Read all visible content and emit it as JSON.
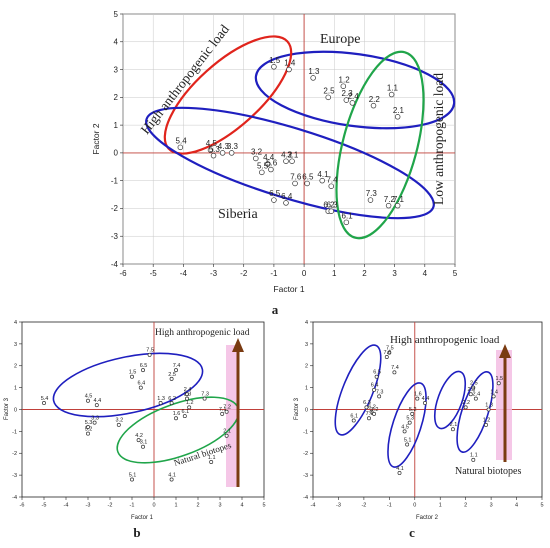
{
  "colors": {
    "blue": "#1f1fbf",
    "red": "#e0241c",
    "green": "#20a54a",
    "axis": "#c0403a",
    "grid": "#c8c8c8",
    "point": "#333333",
    "arrow": "#7a3b12",
    "band": "#f3bde3"
  },
  "chart_data": [
    {
      "id": "a",
      "panel_label": "a",
      "type": "scatter",
      "xlabel": "Factor 1",
      "ylabel": "Factor 2",
      "xlim": [
        -6,
        5
      ],
      "ylim": [
        -4,
        5
      ],
      "xticks": [
        -6,
        -5,
        -4,
        -3,
        -2,
        -1,
        0,
        1,
        2,
        3,
        4,
        5
      ],
      "yticks": [
        -4,
        -3,
        -2,
        -1,
        0,
        1,
        2,
        3,
        4,
        5
      ],
      "grid": true,
      "points": [
        {
          "label": "1.5",
          "x": -1.0,
          "y": 3.1
        },
        {
          "label": "1.4",
          "x": -0.5,
          "y": 3.0
        },
        {
          "label": "1.3",
          "x": 0.3,
          "y": 2.7
        },
        {
          "label": "1.2",
          "x": 1.3,
          "y": 2.4
        },
        {
          "label": "2.5",
          "x": 0.8,
          "y": 2.0
        },
        {
          "label": "2.3",
          "x": 1.4,
          "y": 1.9
        },
        {
          "label": "2.4",
          "x": 1.6,
          "y": 1.8
        },
        {
          "label": "1.1",
          "x": 2.9,
          "y": 2.1
        },
        {
          "label": "2.2",
          "x": 2.3,
          "y": 1.7
        },
        {
          "label": "2.1",
          "x": 3.1,
          "y": 1.3
        },
        {
          "label": "5.4",
          "x": -4.1,
          "y": 0.2
        },
        {
          "label": "4.5",
          "x": -3.1,
          "y": 0.1
        },
        {
          "label": "4.3",
          "x": -2.7,
          "y": 0.0
        },
        {
          "label": "3.3",
          "x": -2.4,
          "y": 0.0
        },
        {
          "label": "5.3",
          "x": -3.0,
          "y": -0.1
        },
        {
          "label": "3.2",
          "x": -1.6,
          "y": -0.2
        },
        {
          "label": "4.4",
          "x": -1.2,
          "y": -0.4
        },
        {
          "label": "4.2",
          "x": -0.6,
          "y": -0.3
        },
        {
          "label": "3.1",
          "x": -0.4,
          "y": -0.3
        },
        {
          "label": "5.5",
          "x": -1.4,
          "y": -0.7
        },
        {
          "label": "5.6",
          "x": -1.1,
          "y": -0.6
        },
        {
          "label": "7.6",
          "x": -0.3,
          "y": -1.1
        },
        {
          "label": "6.5",
          "x": 0.1,
          "y": -1.1
        },
        {
          "label": "4.1",
          "x": 0.6,
          "y": -1.0
        },
        {
          "label": "7.4",
          "x": 0.9,
          "y": -1.2
        },
        {
          "label": "6.5",
          "x": -1.0,
          "y": -1.7
        },
        {
          "label": "6.4",
          "x": -0.6,
          "y": -1.8
        },
        {
          "label": "6.2",
          "x": 0.8,
          "y": -2.1
        },
        {
          "label": "6.3",
          "x": 0.9,
          "y": -2.1
        },
        {
          "label": "7.3",
          "x": 2.2,
          "y": -1.7
        },
        {
          "label": "7.2",
          "x": 2.8,
          "y": -1.9
        },
        {
          "label": "7.1",
          "x": 3.1,
          "y": -1.9
        },
        {
          "label": "6.1",
          "x": 1.4,
          "y": -2.5
        }
      ],
      "annotations": [
        "Europe",
        "Siberia",
        "High anthropogenic load",
        "Low anthropogenic load"
      ]
    },
    {
      "id": "b",
      "panel_label": "b",
      "type": "scatter",
      "xlabel": "Factor 1",
      "ylabel": "Factor 3",
      "xlim": [
        -6,
        5
      ],
      "ylim": [
        -4,
        4
      ],
      "xticks": [
        -6,
        -5,
        -4,
        -3,
        -2,
        -1,
        0,
        1,
        2,
        3,
        4,
        5
      ],
      "yticks": [
        -4,
        -3,
        -2,
        -1,
        0,
        1,
        2,
        3,
        4
      ],
      "grid": false,
      "points": [
        {
          "label": "5.4",
          "x": -5.0,
          "y": 0.3
        },
        {
          "label": "4.5",
          "x": -3.0,
          "y": 0.4
        },
        {
          "label": "4.4",
          "x": -2.6,
          "y": 0.2
        },
        {
          "label": "5.3",
          "x": -3.0,
          "y": -0.8
        },
        {
          "label": "5.2",
          "x": -3.0,
          "y": -1.1
        },
        {
          "label": "3.3",
          "x": -2.7,
          "y": -0.6
        },
        {
          "label": "3.2",
          "x": -1.6,
          "y": -0.7
        },
        {
          "label": "7.5",
          "x": -0.2,
          "y": 2.5
        },
        {
          "label": "6.5",
          "x": -0.5,
          "y": 1.8
        },
        {
          "label": "1.5",
          "x": -1.0,
          "y": 1.5
        },
        {
          "label": "6.4",
          "x": -0.6,
          "y": 1.0
        },
        {
          "label": "7.4",
          "x": 1.0,
          "y": 1.8
        },
        {
          "label": "2.5",
          "x": 0.8,
          "y": 1.4
        },
        {
          "label": "1.3",
          "x": 0.3,
          "y": 0.3
        },
        {
          "label": "6.2",
          "x": 0.8,
          "y": 0.3
        },
        {
          "label": "2.4",
          "x": 1.5,
          "y": 0.7
        },
        {
          "label": "2.3",
          "x": 1.5,
          "y": 0.5
        },
        {
          "label": "7.3",
          "x": 2.3,
          "y": 0.5
        },
        {
          "label": "1.2",
          "x": 1.6,
          "y": 0.1
        },
        {
          "label": "4.2",
          "x": -0.7,
          "y": -1.4
        },
        {
          "label": "3.1",
          "x": -0.5,
          "y": -1.7
        },
        {
          "label": "1.6",
          "x": 1.0,
          "y": -0.4
        },
        {
          "label": "6.1",
          "x": 1.4,
          "y": -0.3
        },
        {
          "label": "7.1",
          "x": 3.1,
          "y": -0.2
        },
        {
          "label": "7.2",
          "x": 3.3,
          "y": -0.1
        },
        {
          "label": "2.1",
          "x": 3.3,
          "y": -1.2
        },
        {
          "label": "5.1",
          "x": -1.0,
          "y": -3.2
        },
        {
          "label": "4.1",
          "x": 0.8,
          "y": -3.2
        },
        {
          "label": "1.1",
          "x": 2.6,
          "y": -2.4
        }
      ],
      "annotations": [
        "High anthropogenic load",
        "Natural biotopes"
      ]
    },
    {
      "id": "c",
      "panel_label": "c",
      "type": "scatter",
      "xlabel": "Factor 2",
      "ylabel": "Factor 3",
      "xlim": [
        -4,
        5
      ],
      "ylim": [
        -4,
        4
      ],
      "xticks": [
        -4,
        -3,
        -2,
        -1,
        0,
        1,
        2,
        3,
        4,
        5
      ],
      "yticks": [
        -4,
        -3,
        -2,
        -1,
        0,
        1,
        2,
        3,
        4
      ],
      "grid": false,
      "points": [
        {
          "label": "7.5",
          "x": -1.0,
          "y": 2.6
        },
        {
          "label": "7.6",
          "x": -1.1,
          "y": 2.4
        },
        {
          "label": "7.4",
          "x": -0.8,
          "y": 1.7
        },
        {
          "label": "6.5",
          "x": -1.5,
          "y": 1.5
        },
        {
          "label": "6.4",
          "x": -1.6,
          "y": 0.9
        },
        {
          "label": "7.3",
          "x": -1.4,
          "y": 0.6
        },
        {
          "label": "6.3",
          "x": -1.9,
          "y": 0.1
        },
        {
          "label": "6.2",
          "x": -1.7,
          "y": -0.1
        },
        {
          "label": "6.1",
          "x": -2.4,
          "y": -0.5
        },
        {
          "label": "7.2",
          "x": -1.6,
          "y": -0.2
        },
        {
          "label": "7.1",
          "x": -1.8,
          "y": -0.4
        },
        {
          "label": "1.6",
          "x": 0.1,
          "y": 0.5
        },
        {
          "label": "4.4",
          "x": 0.4,
          "y": 0.3
        },
        {
          "label": "5.2",
          "x": -0.1,
          "y": -0.2
        },
        {
          "label": "5.3",
          "x": -0.2,
          "y": -0.6
        },
        {
          "label": "4.5",
          "x": -0.4,
          "y": -1.0
        },
        {
          "label": "5.1",
          "x": -0.3,
          "y": -1.6
        },
        {
          "label": "4.1",
          "x": -0.6,
          "y": -2.9
        },
        {
          "label": "2.5",
          "x": 2.3,
          "y": 1.0
        },
        {
          "label": "2.3",
          "x": 2.2,
          "y": 0.7
        },
        {
          "label": "2.4",
          "x": 2.4,
          "y": 0.5
        },
        {
          "label": "2.2",
          "x": 2.0,
          "y": 0.1
        },
        {
          "label": "2.1",
          "x": 1.5,
          "y": -0.9
        },
        {
          "label": "1.5",
          "x": 3.3,
          "y": 1.2
        },
        {
          "label": "1.4",
          "x": 3.1,
          "y": 0.6
        },
        {
          "label": "1.3",
          "x": 2.9,
          "y": 0.0
        },
        {
          "label": "1.2",
          "x": 2.8,
          "y": -0.7
        },
        {
          "label": "1.1",
          "x": 2.3,
          "y": -2.3
        }
      ],
      "annotations": [
        "High anthropogenic load",
        "Natural biotopes"
      ]
    }
  ]
}
